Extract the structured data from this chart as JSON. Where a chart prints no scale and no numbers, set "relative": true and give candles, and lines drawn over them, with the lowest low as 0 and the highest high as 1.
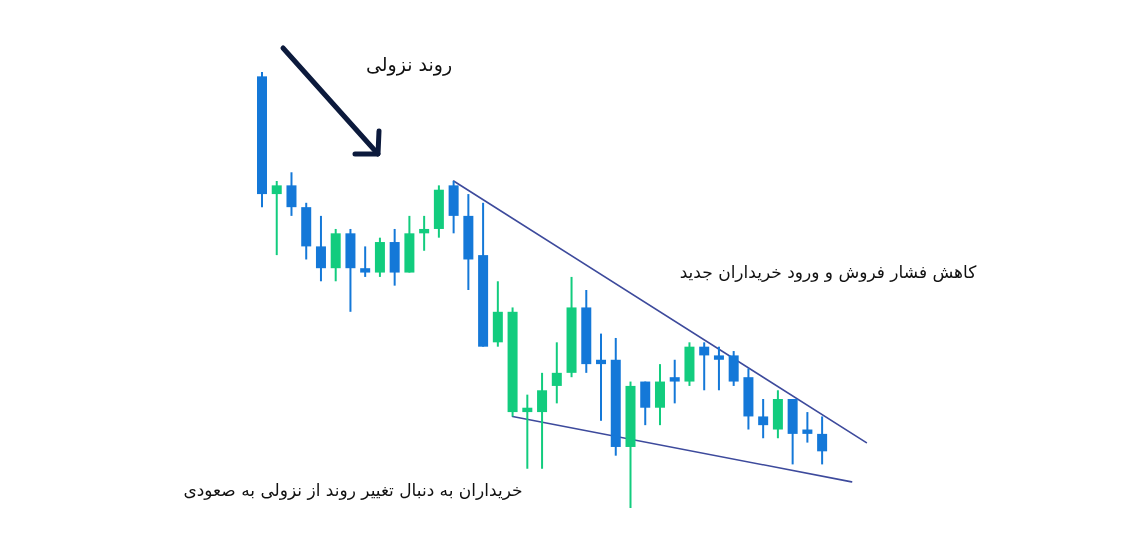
{
  "chart_data": {
    "type": "candlestick",
    "relative": true,
    "categories": [
      null,
      null,
      null,
      null,
      null,
      null,
      null,
      null,
      null,
      null,
      null,
      null,
      null,
      null,
      null,
      null,
      null,
      null,
      null,
      null,
      null,
      null,
      null,
      null,
      null,
      null,
      null,
      null,
      null,
      null,
      null,
      null,
      null,
      null,
      null,
      null,
      null,
      null,
      null,
      null,
      null,
      null
    ],
    "series": [
      {
        "type": "candlestick",
        "ohlc": [
          [
            0.99,
            1.0,
            0.69,
            0.72
          ],
          [
            0.72,
            0.75,
            0.58,
            0.74
          ],
          [
            0.74,
            0.77,
            0.67,
            0.69
          ],
          [
            0.69,
            0.7,
            0.57,
            0.6
          ],
          [
            0.6,
            0.67,
            0.52,
            0.55
          ],
          [
            0.55,
            0.64,
            0.52,
            0.63
          ],
          [
            0.63,
            0.64,
            0.45,
            0.55
          ],
          [
            0.55,
            0.6,
            0.53,
            0.54
          ],
          [
            0.54,
            0.62,
            0.53,
            0.61
          ],
          [
            0.61,
            0.64,
            0.51,
            0.54
          ],
          [
            0.54,
            0.67,
            0.54,
            0.63
          ],
          [
            0.63,
            0.67,
            0.59,
            0.64
          ],
          [
            0.64,
            0.74,
            0.62,
            0.73
          ],
          [
            0.74,
            0.75,
            0.63,
            0.67
          ],
          [
            0.67,
            0.72,
            0.5,
            0.57
          ],
          [
            0.58,
            0.7,
            0.37,
            0.37
          ],
          [
            0.38,
            0.52,
            0.37,
            0.45
          ],
          [
            0.22,
            0.46,
            0.21,
            0.45
          ],
          [
            0.22,
            0.26,
            0.09,
            0.23
          ],
          [
            0.22,
            0.31,
            0.09,
            0.27
          ],
          [
            0.28,
            0.38,
            0.24,
            0.31
          ],
          [
            0.31,
            0.53,
            0.3,
            0.46
          ],
          [
            0.46,
            0.5,
            0.31,
            0.33
          ],
          [
            0.34,
            0.4,
            0.2,
            0.33
          ],
          [
            0.34,
            0.39,
            0.12,
            0.14
          ],
          [
            0.14,
            0.29,
            0.0,
            0.28
          ],
          [
            0.29,
            0.29,
            0.19,
            0.23
          ],
          [
            0.23,
            0.33,
            0.19,
            0.29
          ],
          [
            0.3,
            0.34,
            0.24,
            0.29
          ],
          [
            0.29,
            0.38,
            0.28,
            0.37
          ],
          [
            0.37,
            0.38,
            0.27,
            0.35
          ],
          [
            0.35,
            0.37,
            0.27,
            0.34
          ],
          [
            0.35,
            0.36,
            0.28,
            0.29
          ],
          [
            0.3,
            0.32,
            0.18,
            0.21
          ],
          [
            0.21,
            0.25,
            0.16,
            0.19
          ],
          [
            0.18,
            0.27,
            0.16,
            0.25
          ],
          [
            0.25,
            0.25,
            0.1,
            0.17
          ],
          [
            0.18,
            0.22,
            0.15,
            0.17
          ],
          [
            0.17,
            0.21,
            0.1,
            0.13
          ],
          null,
          null,
          null
        ],
        "colors": [
          "#1478d8",
          "#12cc7e",
          "#1478d8",
          "#1478d8",
          "#1478d8",
          "#12cc7e",
          "#1478d8",
          "#1478d8",
          "#12cc7e",
          "#1478d8",
          "#12cc7e",
          "#12cc7e",
          "#12cc7e",
          "#1478d8",
          "#1478d8",
          "#1478d8",
          "#12cc7e",
          "#12cc7e",
          "#12cc7e",
          "#12cc7e",
          "#12cc7e",
          "#12cc7e",
          "#1478d8",
          "#1478d8",
          "#1478d8",
          "#12cc7e",
          "#1478d8",
          "#12cc7e",
          "#1478d8",
          "#12cc7e",
          "#1478d8",
          "#1478d8",
          "#1478d8",
          "#1478d8",
          "#1478d8",
          "#12cc7e",
          "#1478d8",
          "#1478d8",
          "#1478d8",
          null,
          null,
          null
        ]
      },
      {
        "type": "line",
        "values": [
          null,
          null,
          null,
          null,
          null,
          null,
          null,
          null,
          null,
          null,
          null,
          null,
          null,
          0.75,
          null,
          null,
          null,
          null,
          null,
          null,
          null,
          null,
          null,
          null,
          null,
          null,
          null,
          null,
          null,
          null,
          null,
          null,
          null,
          null,
          null,
          null,
          null,
          null,
          null,
          null,
          null,
          0.15
        ],
        "color": "#3d4a9c"
      },
      {
        "type": "line",
        "values": [
          null,
          null,
          null,
          null,
          null,
          null,
          null,
          null,
          null,
          null,
          null,
          null,
          null,
          null,
          null,
          null,
          null,
          0.21,
          null,
          null,
          null,
          null,
          null,
          null,
          null,
          null,
          null,
          null,
          null,
          null,
          null,
          null,
          null,
          null,
          null,
          null,
          null,
          null,
          null,
          null,
          0.06,
          null
        ],
        "color": "#3d4a9c"
      }
    ],
    "annotations": [
      "روند نزولی",
      "کاهش فشار فروش و ورود خریداران جدید",
      "خریداران به دنبال تغییر روند از نزولی به صعودی"
    ]
  }
}
